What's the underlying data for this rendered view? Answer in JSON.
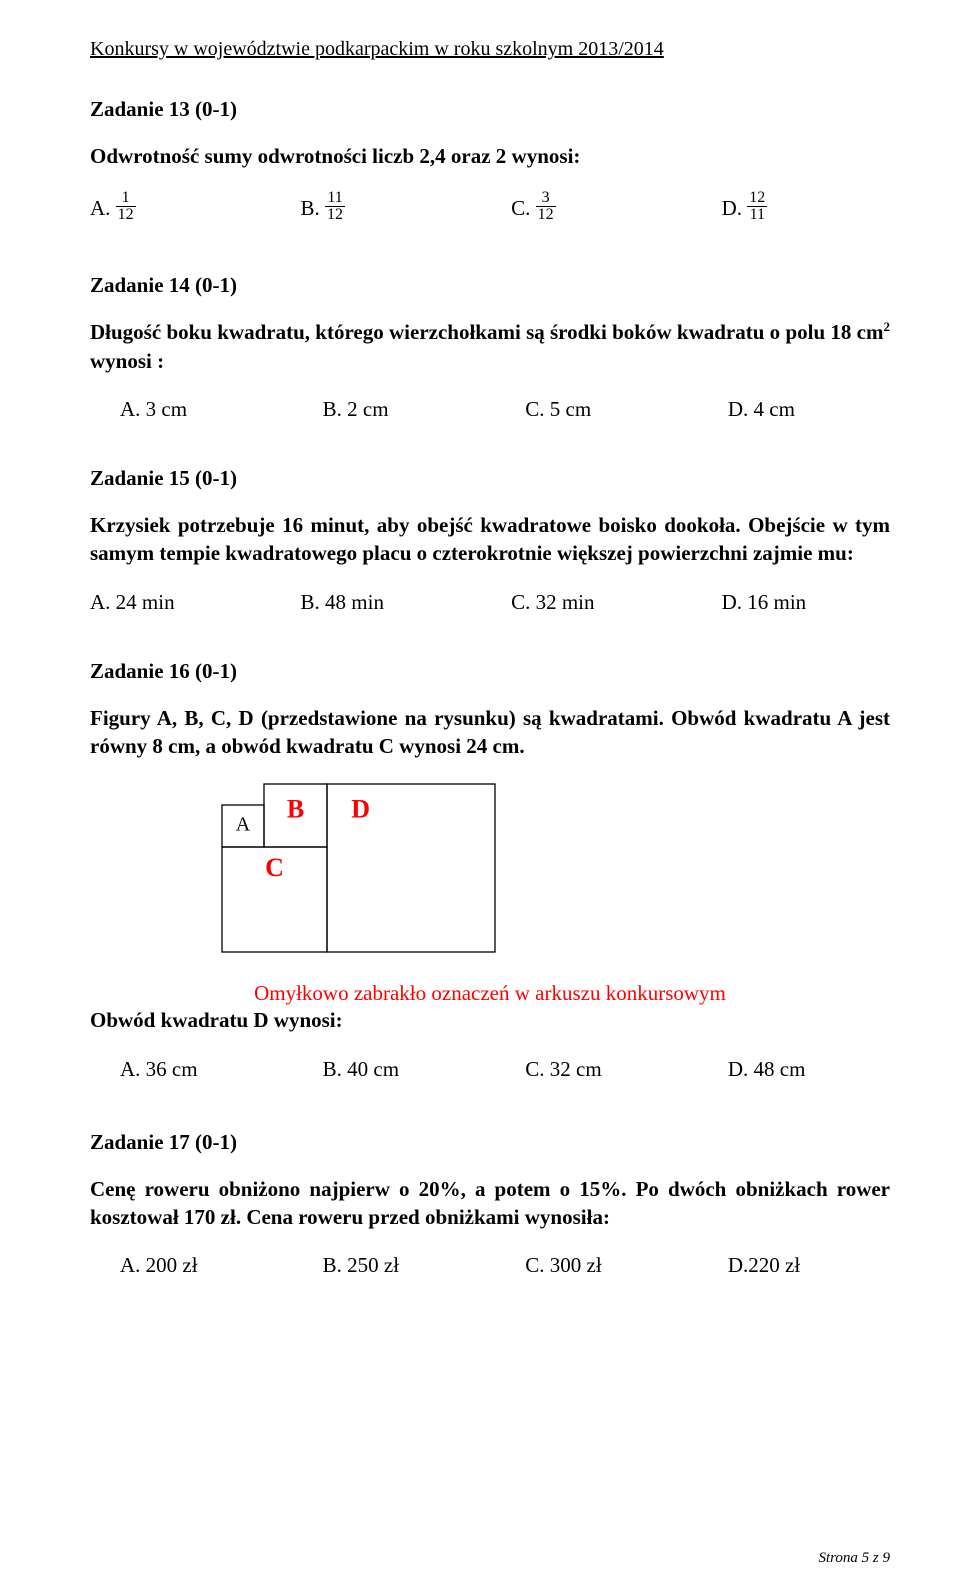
{
  "header": "Konkursy w województwie podkarpackim w roku szkolnym 2013/2014",
  "task13": {
    "title": "Zadanie 13 (0-1)",
    "text": "Odwrotność sumy odwrotności liczb 2,4 oraz 2 wynosi:",
    "options": {
      "A": {
        "num": "1",
        "den": "12"
      },
      "B": {
        "num": "11",
        "den": "12"
      },
      "C": {
        "num": "3",
        "den": "12"
      },
      "D": {
        "num": "12",
        "den": "11"
      }
    }
  },
  "task14": {
    "title": "Zadanie 14 (0-1)",
    "text_pre": "Długość boku kwadratu, którego wierzchołkami są środki boków kwadratu o polu 18 cm",
    "text_post": " wynosi :",
    "options": {
      "A": "A. 3 cm",
      "B": "B. 2 cm",
      "C": "C. 5 cm",
      "D": "D. 4 cm"
    }
  },
  "task15": {
    "title": "Zadanie 15 (0-1)",
    "text": " Krzysiek potrzebuje 16 minut, aby obejść kwadratowe boisko dookoła. Obejście w tym samym tempie kwadratowego placu o czterokrotnie większej powierzchni zajmie mu:",
    "options": {
      "A": "A. 24 min",
      "B": "B. 48 min",
      "C": "C. 32 min",
      "D": "D. 16 min"
    }
  },
  "task16": {
    "title": "Zadanie 16 (0-1)",
    "text": "Figury A, B, C, D (przedstawione na rysunku) są kwadratami. Obwód kwadratu A  jest równy 8 cm, a obwód kwadratu C wynosi 24 cm.",
    "note": "Omyłkowo zabrakło oznaczeń w arkuszu konkursowym",
    "subtext": "Obwód kwadratu D wynosi:",
    "options": {
      "A": "A.  36 cm",
      "B": "B. 40 cm",
      "C": "C. 32 cm",
      "D": "D. 48 cm"
    },
    "diagram": {
      "labels": {
        "A": "A",
        "B": "B",
        "C": "C",
        "D": "D"
      },
      "unit": 21,
      "sideA": 2,
      "sideB": 3,
      "sideC": 5,
      "sideD": 8,
      "label_color_red": "#ff0000",
      "label_fontsize": 26,
      "label_A_fontsize": 20,
      "border_color": "#000000"
    }
  },
  "task17": {
    "title": "Zadanie 17 (0-1)",
    "text": "Cenę roweru obniżono najpierw o 20%, a potem o 15%. Po dwóch obniżkach rower kosztował 170 zł.  Cena roweru przed obniżkami  wynosiła:",
    "options": {
      "A": "A.  200 zł",
      "B": "B. 250 zł",
      "C": "C. 300 zł",
      "D": "D.220 zł"
    }
  },
  "footer": "Strona 5 z 9"
}
